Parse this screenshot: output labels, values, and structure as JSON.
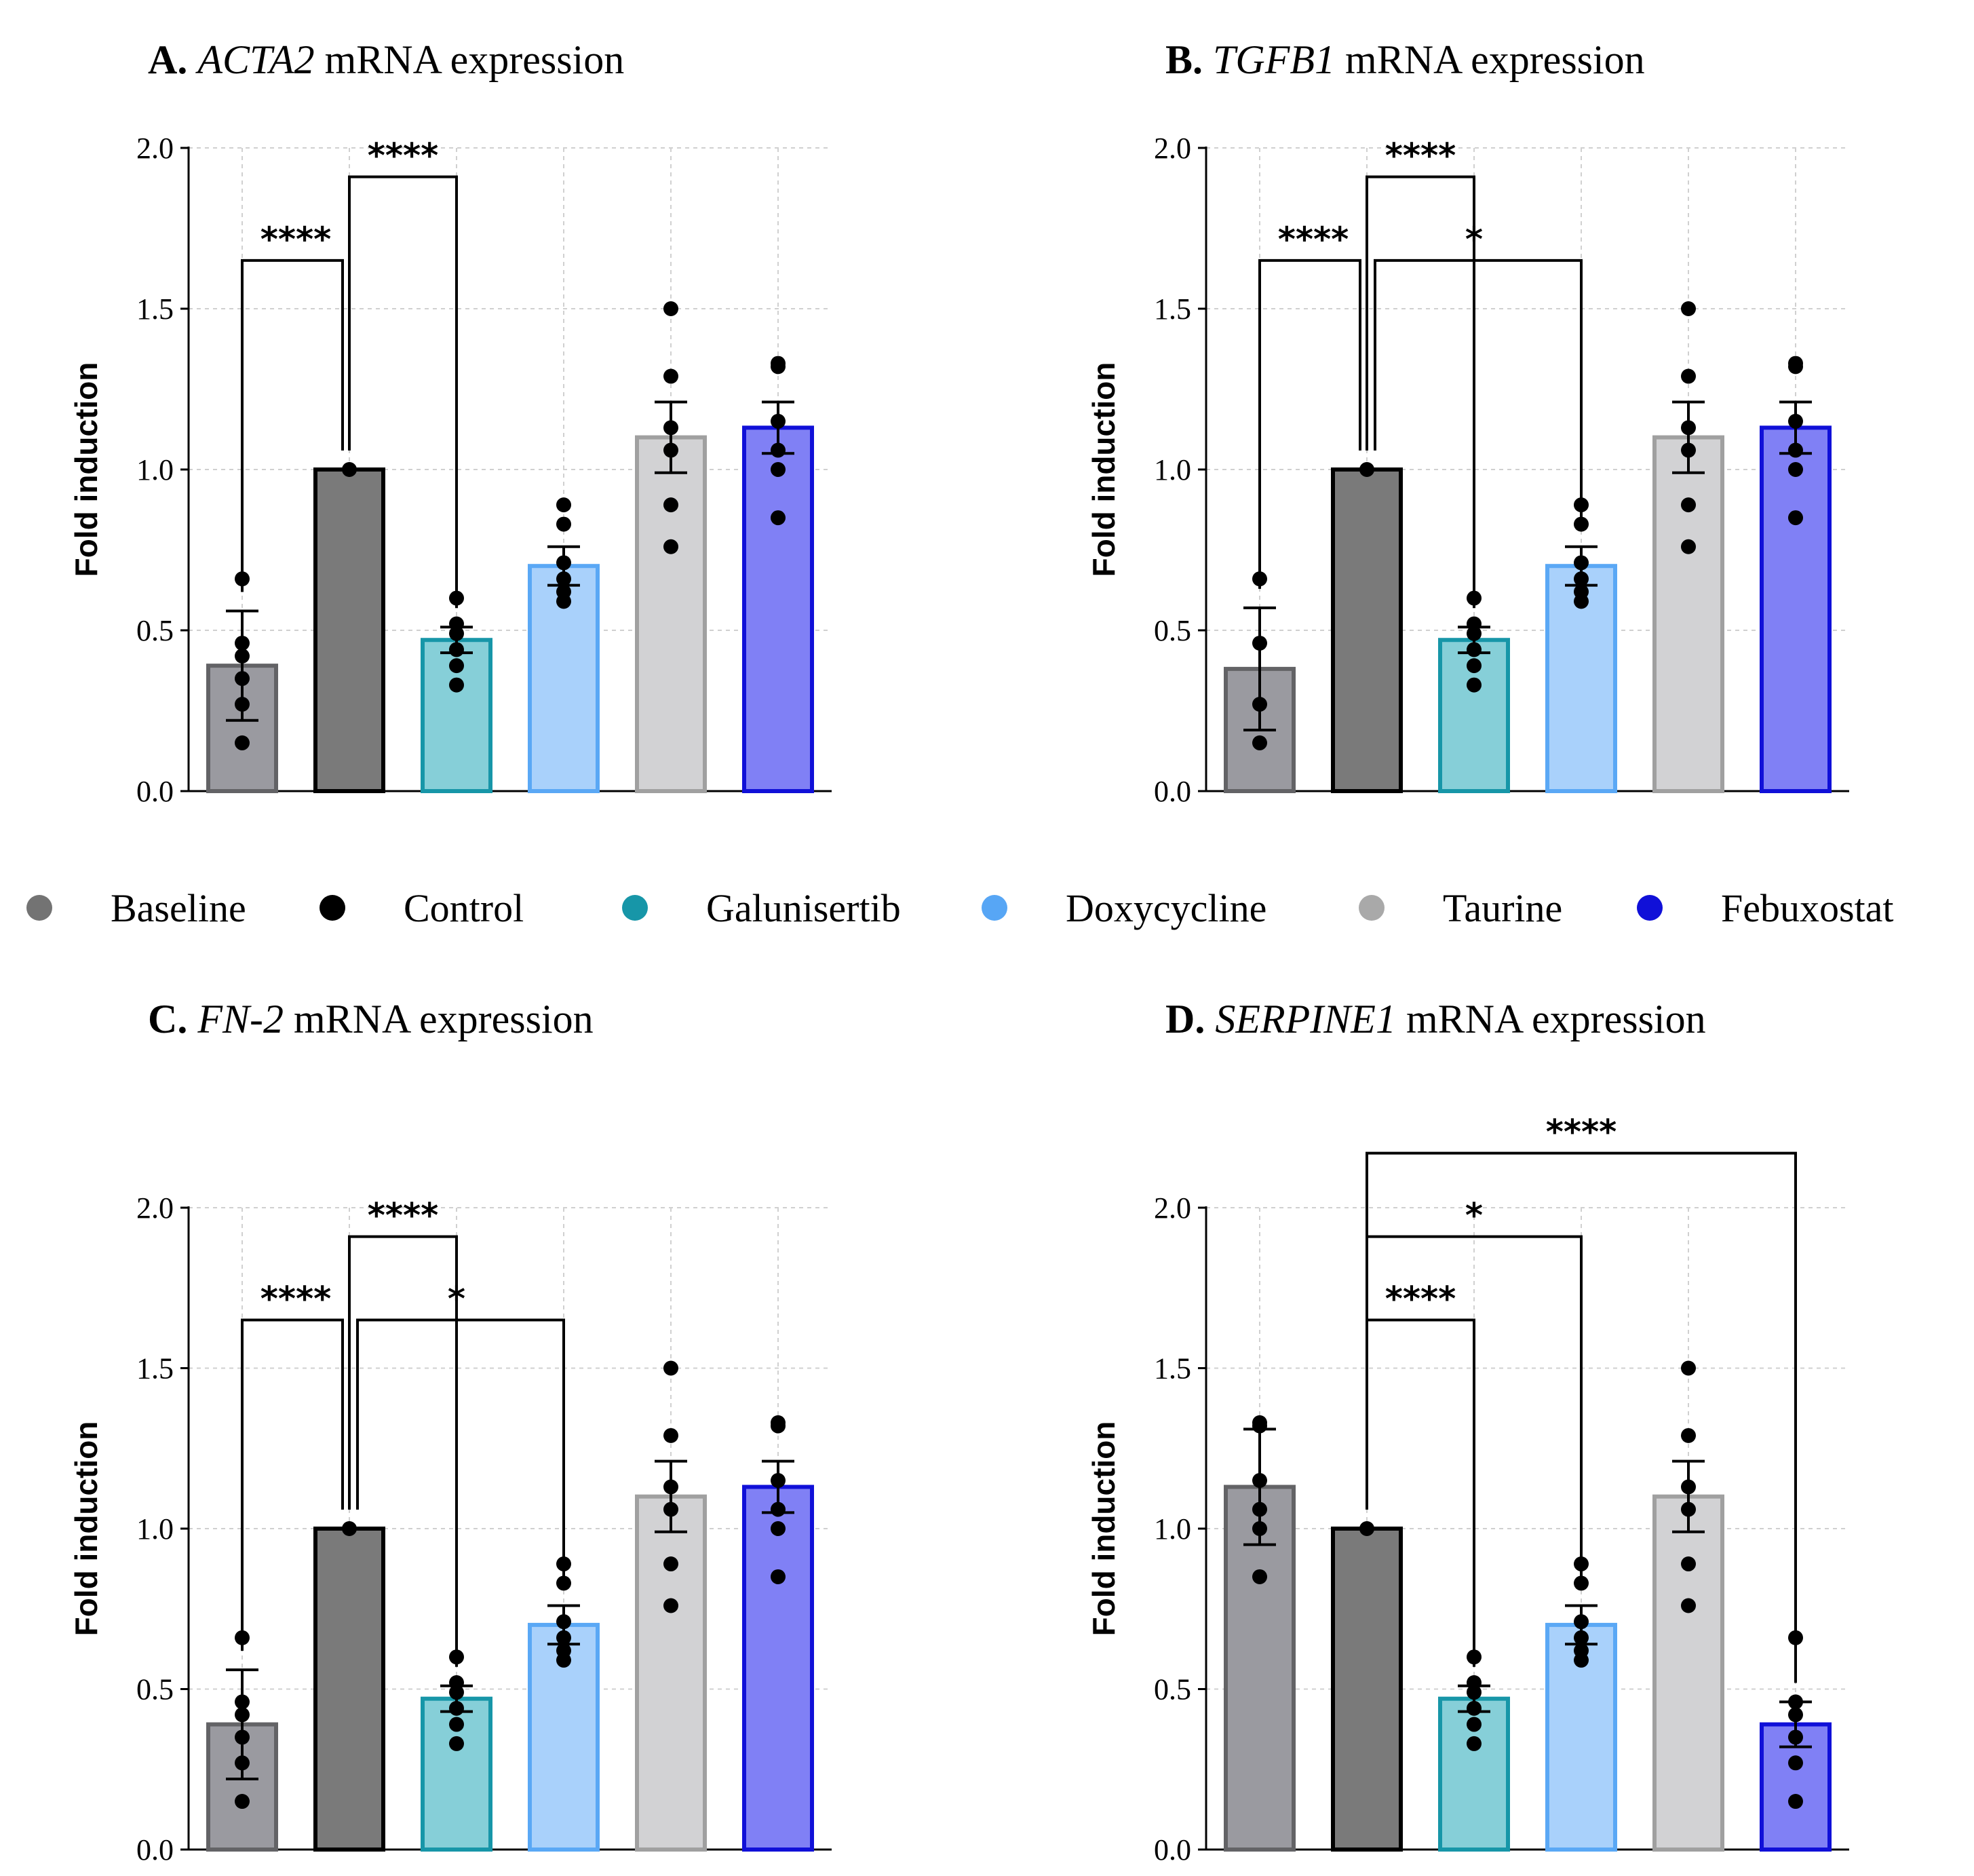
{
  "legend": [
    {
      "label": "Baseline",
      "color": "#737373"
    },
    {
      "label": "Control",
      "color": "#000000"
    },
    {
      "label": "Galunisertib",
      "color": "#1796A8"
    },
    {
      "label": "Doxycycline",
      "color": "#57A6F5"
    },
    {
      "label": "Taurine",
      "color": "#A9A9A9"
    },
    {
      "label": "Febuxostat",
      "color": "#1010D8"
    }
  ],
  "chart_data": [
    {
      "type": "bar",
      "panel": "A.",
      "gene": "ACTA2",
      "title_rest": " mRNA expression",
      "ylabel": "Fold induction",
      "ylim": [
        0,
        2.0
      ],
      "yticks": [
        "0.0",
        "0.5",
        "1.0",
        "1.5",
        "2.0"
      ],
      "grid": true,
      "categories": [
        "Baseline",
        "Control",
        "Galunisertib",
        "Doxycycline",
        "Taurine",
        "Febuxostat"
      ],
      "values": [
        0.39,
        1.0,
        0.47,
        0.7,
        1.1,
        1.13
      ],
      "sem": [
        0.17,
        0,
        0.04,
        0.06,
        0.11,
        0.08
      ],
      "points": [
        [
          0.15,
          0.27,
          0.35,
          0.42,
          0.46,
          0.66
        ],
        [
          1.0
        ],
        [
          0.33,
          0.39,
          0.44,
          0.49,
          0.52,
          0.6
        ],
        [
          0.59,
          0.62,
          0.66,
          0.71,
          0.83,
          0.89
        ],
        [
          0.76,
          0.89,
          1.06,
          1.13,
          1.29,
          1.5
        ],
        [
          0.85,
          1.0,
          1.06,
          1.15,
          1.32,
          1.33
        ]
      ],
      "brackets": [
        {
          "from": 0,
          "to": 1,
          "y": 1.65,
          "label": "****"
        },
        {
          "from": 1,
          "to": 2,
          "y": 1.91,
          "label": "****"
        }
      ]
    },
    {
      "type": "bar",
      "panel": "B.",
      "gene": "TGFB1",
      "title_rest": " mRNA expression",
      "ylabel": "Fold induction",
      "ylim": [
        0,
        2.0
      ],
      "yticks": [
        "0.0",
        "0.5",
        "1.0",
        "1.5",
        "2.0"
      ],
      "grid": true,
      "categories": [
        "Baseline",
        "Control",
        "Galunisertib",
        "Doxycycline",
        "Taurine",
        "Febuxostat"
      ],
      "values": [
        0.38,
        1.0,
        0.47,
        0.7,
        1.1,
        1.13
      ],
      "sem": [
        0.19,
        0,
        0.04,
        0.06,
        0.11,
        0.08
      ],
      "points": [
        [
          0.15,
          0.27,
          0.46,
          0.66
        ],
        [
          1.0
        ],
        [
          0.33,
          0.39,
          0.44,
          0.49,
          0.52,
          0.6
        ],
        [
          0.59,
          0.62,
          0.66,
          0.71,
          0.83,
          0.89
        ],
        [
          0.76,
          0.89,
          1.06,
          1.13,
          1.29,
          1.5
        ],
        [
          0.85,
          1.0,
          1.06,
          1.15,
          1.32,
          1.33
        ]
      ],
      "brackets": [
        {
          "from": 0,
          "to": 1,
          "y": 1.65,
          "label": "****"
        },
        {
          "from": 1,
          "to": 2,
          "y": 1.91,
          "label": "****"
        },
        {
          "from": 1,
          "to": 3,
          "y": 1.65,
          "label": "*"
        }
      ]
    },
    {
      "type": "bar",
      "panel": "C.",
      "gene": "FN-2",
      "title_rest": " mRNA expression",
      "ylabel": "Fold induction",
      "ylim": [
        0,
        2.0
      ],
      "yticks": [
        "0.0",
        "0.5",
        "1.0",
        "1.5",
        "2.0"
      ],
      "grid": true,
      "categories": [
        "Baseline",
        "Control",
        "Galunisertib",
        "Doxycycline",
        "Taurine",
        "Febuxostat"
      ],
      "values": [
        0.39,
        1.0,
        0.47,
        0.7,
        1.1,
        1.13
      ],
      "sem": [
        0.17,
        0,
        0.04,
        0.06,
        0.11,
        0.08
      ],
      "points": [
        [
          0.15,
          0.27,
          0.35,
          0.42,
          0.46,
          0.66
        ],
        [
          1.0
        ],
        [
          0.33,
          0.39,
          0.44,
          0.49,
          0.52,
          0.6
        ],
        [
          0.59,
          0.62,
          0.66,
          0.71,
          0.83,
          0.89
        ],
        [
          0.76,
          0.89,
          1.06,
          1.13,
          1.29,
          1.5
        ],
        [
          0.85,
          1.0,
          1.06,
          1.15,
          1.32,
          1.33
        ]
      ],
      "brackets": [
        {
          "from": 0,
          "to": 1,
          "y": 1.65,
          "label": "****"
        },
        {
          "from": 1,
          "to": 2,
          "y": 1.91,
          "label": "****"
        },
        {
          "from": 1,
          "to": 3,
          "y": 1.65,
          "label": "*"
        }
      ]
    },
    {
      "type": "bar",
      "panel": "D.",
      "gene": "SERPINE1",
      "title_rest": " mRNA expression",
      "ylabel": "Fold induction",
      "ylim": [
        0,
        2.0
      ],
      "yticks": [
        "0.0",
        "0.5",
        "1.0",
        "1.5",
        "2.0"
      ],
      "grid": true,
      "categories": [
        "Baseline",
        "Control",
        "Galunisertib",
        "Doxycycline",
        "Taurine",
        "Febuxostat"
      ],
      "values": [
        1.13,
        1.0,
        0.47,
        0.7,
        1.1,
        0.39
      ],
      "sem": [
        0.18,
        0,
        0.04,
        0.06,
        0.11,
        0.07
      ],
      "points": [
        [
          0.85,
          1.0,
          1.06,
          1.15,
          1.32,
          1.33
        ],
        [
          1.0
        ],
        [
          0.33,
          0.39,
          0.44,
          0.49,
          0.52,
          0.6
        ],
        [
          0.59,
          0.62,
          0.66,
          0.71,
          0.83,
          0.89
        ],
        [
          0.76,
          0.89,
          1.06,
          1.13,
          1.29,
          1.5
        ],
        [
          0.15,
          0.27,
          0.35,
          0.42,
          0.46,
          0.66
        ]
      ],
      "brackets": [
        {
          "from": 1,
          "to": 2,
          "y": 1.65,
          "label": "****"
        },
        {
          "from": 1,
          "to": 3,
          "y": 1.91,
          "label": "*"
        },
        {
          "from": 1,
          "to": 5,
          "y": 2.17,
          "label": "****"
        }
      ]
    }
  ]
}
